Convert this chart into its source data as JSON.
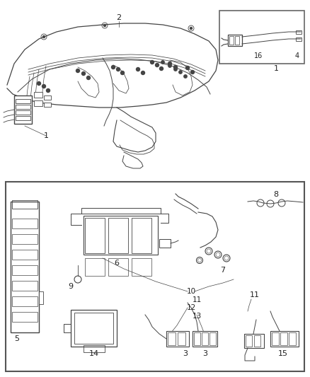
{
  "bg_color": "#ffffff",
  "border_color": "#555555",
  "line_color": "#444444",
  "text_color": "#222222",
  "fig_width": 4.38,
  "fig_height": 5.33,
  "dpi": 100
}
